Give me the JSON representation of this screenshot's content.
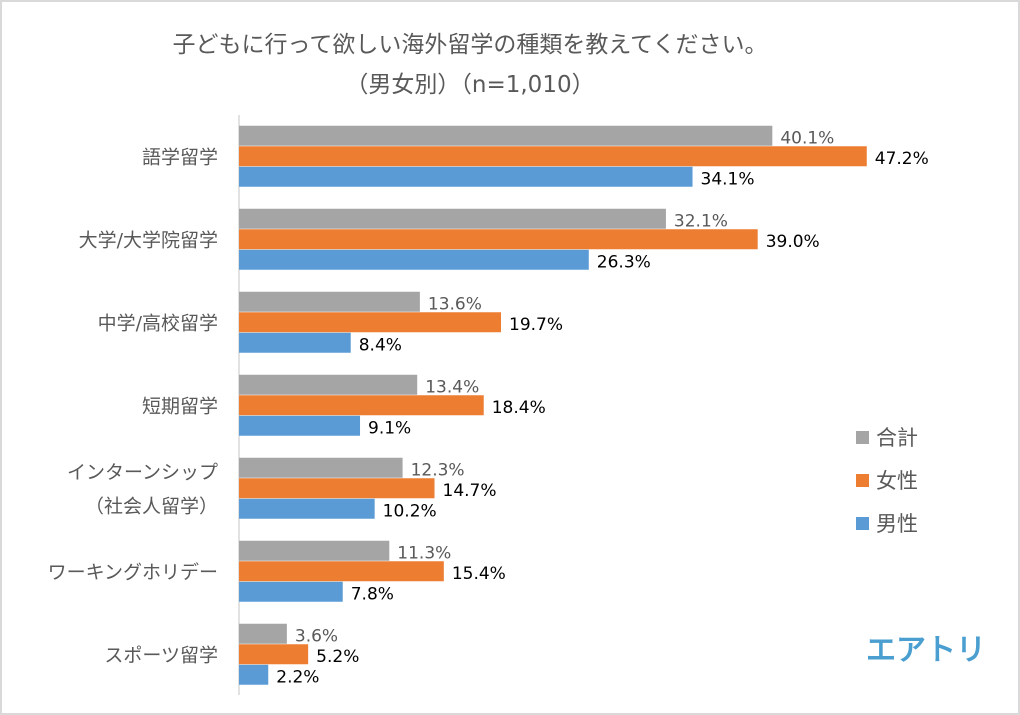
{
  "chart_data": {
    "type": "bar",
    "orientation": "horizontal",
    "title": "子どもに行って欲しい海外留学の種類を教えてください。",
    "subtitle": "（男女別）（n=1,010）",
    "categories": [
      [
        "語学留学"
      ],
      [
        "大学/大学院留学"
      ],
      [
        "中学/高校留学"
      ],
      [
        "短期留学"
      ],
      [
        "インターンシップ",
        "（社会人留学）"
      ],
      [
        "ワーキングホリデー"
      ],
      [
        "スポーツ留学"
      ]
    ],
    "series": [
      {
        "name": "合計",
        "color": "#a5a5a5",
        "values": [
          40.1,
          32.1,
          13.6,
          13.4,
          12.3,
          11.3,
          3.6
        ]
      },
      {
        "name": "女性",
        "color": "#ed7d31",
        "values": [
          47.2,
          39.0,
          19.7,
          18.4,
          14.7,
          15.4,
          5.2
        ]
      },
      {
        "name": "男性",
        "color": "#5b9bd5",
        "values": [
          34.1,
          26.3,
          8.4,
          9.1,
          10.2,
          7.8,
          2.2
        ]
      }
    ],
    "value_format": "percent_1dp",
    "xlim": [
      0,
      50
    ],
    "grid": false,
    "x_axis_visible": false,
    "legend_position": "right"
  },
  "logo": {
    "text": "エアトリ",
    "color": "#4a9fd0"
  }
}
